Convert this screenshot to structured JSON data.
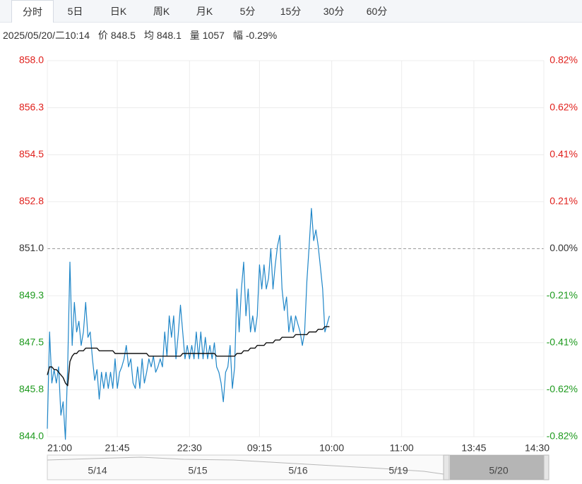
{
  "tabs": [
    "分时",
    "5日",
    "日K",
    "周K",
    "月K",
    "5分",
    "15分",
    "30分",
    "60分"
  ],
  "info": {
    "datetime": "2025/05/20/二10:14",
    "price_label": "价",
    "price": 848.5,
    "avg_label": "均",
    "avg": 848.1,
    "volume_label": "量",
    "volume": 1057,
    "range_label": "幅",
    "range": "-0.29%"
  },
  "chart_data": {
    "type": "line",
    "ylim": [
      844,
      858
    ],
    "yticks": [
      {
        "value": 858,
        "label": "858.0"
      },
      {
        "value": 856.25,
        "label": "856.3"
      },
      {
        "value": 854.5,
        "label": "854.5"
      },
      {
        "value": 852.75,
        "label": "852.8"
      },
      {
        "value": 851,
        "label": "851.0"
      },
      {
        "value": 849.25,
        "label": "849.3"
      },
      {
        "value": 847.5,
        "label": "847.5"
      },
      {
        "value": 845.75,
        "label": "845.8"
      },
      {
        "value": 844,
        "label": "844.0"
      }
    ],
    "y2lim": [
      -0.8226,
      0.8226
    ],
    "y2ticks": [
      {
        "value": 0.8226,
        "label": "0.82%"
      },
      {
        "value": 0.6169,
        "label": "0.62%"
      },
      {
        "value": 0.4113,
        "label": "0.41%"
      },
      {
        "value": 0.2056,
        "label": "0.21%"
      },
      {
        "value": 0,
        "label": "0.00%"
      },
      {
        "value": -0.2056,
        "label": "-0.21%"
      },
      {
        "value": -0.4113,
        "label": "-0.41%"
      },
      {
        "value": -0.6169,
        "label": "-0.62%"
      },
      {
        "value": -0.8226,
        "label": "-0.82%"
      }
    ],
    "xlim": [
      0,
      220
    ],
    "xticks": [
      {
        "value": 0,
        "label": "21:00"
      },
      {
        "value": 31,
        "label": "21:45"
      },
      {
        "value": 63,
        "label": "22:30"
      },
      {
        "value": 94,
        "label": "09:15"
      },
      {
        "value": 126,
        "label": "10:00"
      },
      {
        "value": 157,
        "label": "11:00"
      },
      {
        "value": 189,
        "label": "13:45"
      },
      {
        "value": 220,
        "label": "14:30"
      }
    ],
    "reference": 851,
    "grid": true,
    "up_color": "#e0201c",
    "down_color": "#1e9a1e",
    "series": [
      {
        "color": "#1f86c8",
        "values": [
          844.3,
          847.9,
          846.0,
          846.5,
          846.0,
          846.6,
          844.8,
          845.3,
          843.9,
          846.6,
          850.5,
          847.4,
          849.0,
          847.9,
          848.3,
          847.4,
          847.9,
          849.0,
          847.7,
          847.9,
          846.9,
          846.1,
          846.5,
          845.4,
          846.4,
          845.8,
          846.4,
          845.8,
          846.4,
          845.8,
          846.9,
          845.8,
          846.4,
          846.6,
          846.9,
          847.4,
          846.6,
          846.9,
          846.0,
          845.8,
          846.6,
          845.8,
          846.9,
          846.0,
          846.4,
          846.9,
          846.6,
          847.0,
          846.4,
          846.6,
          846.9,
          846.6,
          847.9,
          847.0,
          848.5,
          847.7,
          848.5,
          846.9,
          847.8,
          848.9,
          847.9,
          846.9,
          847.4,
          846.9,
          847.4,
          846.9,
          847.9,
          846.9,
          847.9,
          846.9,
          847.7,
          846.9,
          847.4,
          846.9,
          847.5,
          846.6,
          846.4,
          846.0,
          845.3,
          846.4,
          846.6,
          847.4,
          845.8,
          846.6,
          849.5,
          847.9,
          849.5,
          850.5,
          848.5,
          849.5,
          847.9,
          848.5,
          847.9,
          848.5,
          850.4,
          849.5,
          850.4,
          849.5,
          849.9,
          851.0,
          849.5,
          850.4,
          851.1,
          851.5,
          849.5,
          848.7,
          849.2,
          847.9,
          848.5,
          847.9,
          848.5,
          848.2,
          847.9,
          847.4,
          847.9,
          849.8,
          851.1,
          852.5,
          851.3,
          851.7,
          851.1,
          850.3,
          849.5,
          847.9,
          848.2,
          848.5
        ]
      },
      {
        "color": "#111111",
        "values": [
          846.3,
          846.6,
          846.6,
          846.5,
          846.5,
          846.4,
          846.3,
          846.2,
          846.0,
          845.9,
          846.8,
          847.0,
          847.1,
          847.1,
          847.2,
          847.2,
          847.2,
          847.3,
          847.3,
          847.3,
          847.3,
          847.3,
          847.3,
          847.2,
          847.2,
          847.2,
          847.2,
          847.2,
          847.2,
          847.2,
          847.1,
          847.1,
          847.1,
          847.1,
          847.1,
          847.1,
          847.1,
          847.1,
          847.1,
          847.1,
          847.1,
          847.1,
          847.1,
          847.1,
          847.1,
          847.0,
          847.0,
          847.0,
          847.0,
          847.0,
          847.0,
          847.0,
          847.0,
          847.0,
          847.0,
          847.0,
          847.0,
          847.0,
          847.0,
          847.0,
          847.1,
          847.1,
          847.1,
          847.1,
          847.1,
          847.1,
          847.1,
          847.1,
          847.1,
          847.1,
          847.1,
          847.1,
          847.1,
          847.1,
          847.1,
          847.0,
          847.0,
          847.0,
          847.0,
          847.0,
          847.0,
          847.0,
          847.0,
          847.0,
          847.1,
          847.1,
          847.1,
          847.2,
          847.2,
          847.2,
          847.3,
          847.3,
          847.3,
          847.4,
          847.4,
          847.4,
          847.4,
          847.5,
          847.5,
          847.5,
          847.5,
          847.6,
          847.6,
          847.6,
          847.7,
          847.7,
          847.7,
          847.7,
          847.7,
          847.7,
          847.8,
          847.8,
          847.8,
          847.8,
          847.8,
          847.8,
          847.9,
          847.9,
          847.9,
          847.9,
          848.0,
          848.0,
          848.0,
          848.1,
          848.1,
          848.1
        ]
      }
    ]
  },
  "navigator": {
    "dates": [
      "5/14",
      "5/15",
      "5/16",
      "5/19",
      "5/20"
    ]
  }
}
